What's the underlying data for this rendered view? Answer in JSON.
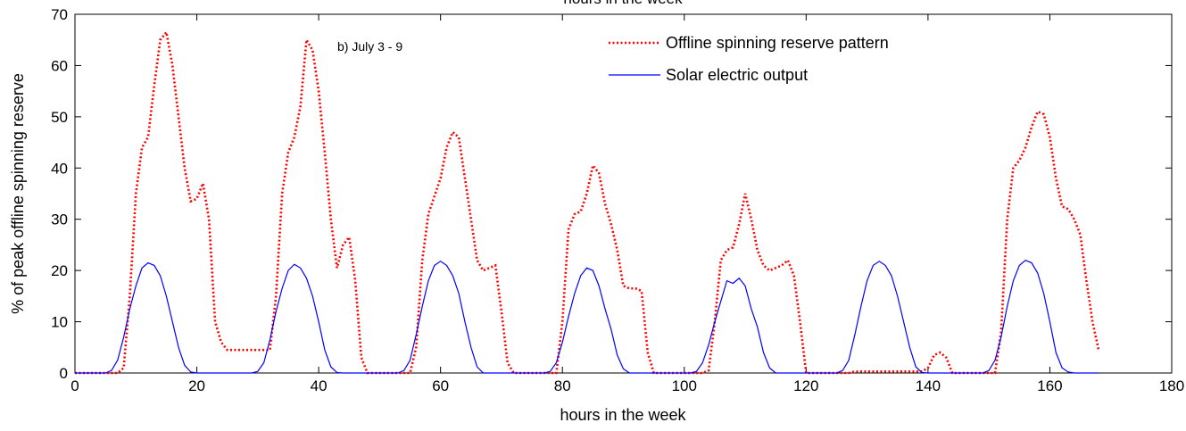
{
  "chart_data": {
    "type": "line",
    "title": "hours in the week",
    "xlabel": "hours in the week",
    "ylabel": "% of peak offline spinning reserve",
    "annotation": "b) July 3 - 9",
    "legend": "upper right",
    "grid": false,
    "xlim": [
      0,
      180
    ],
    "xticks": [
      0,
      20,
      40,
      60,
      80,
      100,
      120,
      140,
      160,
      180
    ],
    "ylim": [
      0,
      70
    ],
    "yticks": [
      0,
      10,
      20,
      30,
      40,
      50,
      60,
      70
    ],
    "x": [
      0,
      1,
      2,
      3,
      4,
      5,
      6,
      7,
      8,
      9,
      10,
      11,
      12,
      13,
      14,
      15,
      16,
      17,
      18,
      19,
      20,
      21,
      22,
      23,
      24,
      25,
      26,
      27,
      28,
      29,
      30,
      31,
      32,
      33,
      34,
      35,
      36,
      37,
      38,
      39,
      40,
      41,
      42,
      43,
      44,
      45,
      46,
      47,
      48,
      49,
      50,
      51,
      52,
      53,
      54,
      55,
      56,
      57,
      58,
      59,
      60,
      61,
      62,
      63,
      64,
      65,
      66,
      67,
      68,
      69,
      70,
      71,
      72,
      73,
      74,
      75,
      76,
      77,
      78,
      79,
      80,
      81,
      82,
      83,
      84,
      85,
      86,
      87,
      88,
      89,
      90,
      91,
      92,
      93,
      94,
      95,
      96,
      97,
      98,
      99,
      100,
      101,
      102,
      103,
      104,
      105,
      106,
      107,
      108,
      109,
      110,
      111,
      112,
      113,
      114,
      115,
      116,
      117,
      118,
      119,
      120,
      121,
      122,
      123,
      124,
      125,
      126,
      127,
      128,
      129,
      130,
      131,
      132,
      133,
      134,
      135,
      136,
      137,
      138,
      139,
      140,
      141,
      142,
      143,
      144,
      145,
      146,
      147,
      148,
      149,
      150,
      151,
      152,
      153,
      154,
      155,
      156,
      157,
      158,
      159,
      160,
      161,
      162,
      163,
      164,
      165,
      166,
      167,
      168
    ],
    "series": [
      {
        "name": "Offline spinning reserve pattern",
        "color": "#ff0000",
        "style": "dotted",
        "values": [
          0,
          0,
          0,
          0,
          0,
          0,
          0,
          0,
          1,
          15,
          35,
          44,
          46,
          56,
          65,
          66.5,
          60,
          50,
          40,
          33.5,
          34,
          37,
          30,
          10,
          6,
          4.5,
          4.5,
          4.5,
          4.5,
          4.5,
          4.5,
          4.5,
          4.5,
          15,
          35,
          43,
          46,
          52,
          65,
          63,
          55,
          43,
          30,
          20.5,
          25,
          26.5,
          18,
          3,
          0,
          0,
          0,
          0,
          0,
          0,
          0,
          0,
          5,
          22,
          31,
          34.5,
          38,
          44,
          47,
          46,
          38,
          30,
          22,
          20,
          20.5,
          21,
          12,
          2,
          0,
          0,
          0,
          0,
          0,
          0,
          0,
          0,
          10,
          28,
          31,
          31.5,
          35,
          40.5,
          39,
          33,
          29,
          24,
          17,
          16.5,
          16.5,
          16,
          4,
          0,
          0,
          0,
          0,
          0,
          0,
          0,
          0,
          0,
          0.5,
          10,
          22,
          24,
          24.5,
          29,
          35,
          30,
          24,
          21,
          20,
          20.5,
          21,
          22,
          19,
          10,
          0,
          0,
          0,
          0,
          0,
          0,
          0,
          0,
          0.3,
          0.3,
          0.3,
          0.3,
          0.3,
          0.3,
          0.3,
          0.3,
          0.3,
          0.3,
          0.3,
          0.3,
          1,
          3.5,
          4,
          3,
          0,
          0,
          0,
          0,
          0,
          0,
          0,
          0,
          8,
          30,
          40,
          41.5,
          44,
          48,
          51,
          50.5,
          46,
          38,
          32.5,
          32,
          30,
          27,
          18,
          10,
          4.5
        ]
      },
      {
        "name": "Solar electric output",
        "color": "#0000ff",
        "style": "solid",
        "values": [
          0,
          0,
          0,
          0,
          0,
          0,
          0.5,
          2.5,
          7,
          12.5,
          17,
          20.5,
          21.5,
          21,
          19,
          15,
          10,
          5,
          1.5,
          0.2,
          0,
          0,
          0,
          0,
          0,
          0,
          0,
          0,
          0,
          0,
          0.3,
          2,
          6.5,
          12,
          16.5,
          20,
          21.2,
          20.5,
          18.5,
          15,
          10,
          4.5,
          1.2,
          0.1,
          0,
          0,
          0,
          0,
          0,
          0,
          0,
          0,
          0,
          0,
          0.5,
          2.5,
          7.5,
          13,
          18,
          21,
          21.8,
          21,
          19,
          15.5,
          10,
          5,
          1.2,
          0,
          0,
          0,
          0,
          0,
          0,
          0,
          0,
          0,
          0,
          0,
          0.3,
          2,
          6,
          11,
          15.5,
          19,
          20.5,
          20,
          17,
          12.5,
          8.5,
          3.5,
          0.8,
          0,
          0,
          0,
          0,
          0,
          0,
          0,
          0,
          0,
          0,
          0,
          0.3,
          2,
          5.5,
          10,
          14,
          18,
          17.5,
          18.5,
          17,
          12.5,
          9,
          4,
          1,
          0,
          0,
          0,
          0,
          0,
          0,
          0,
          0,
          0,
          0,
          0,
          0.5,
          2.5,
          7.5,
          13,
          18,
          21,
          21.8,
          21,
          19,
          15,
          10,
          5,
          1.2,
          0.1,
          0,
          0,
          0,
          0,
          0,
          0,
          0,
          0,
          0,
          0,
          0.5,
          2.5,
          7,
          13,
          18,
          21,
          22,
          21.5,
          19.5,
          15.5,
          10,
          4,
          1,
          0.2,
          0,
          0,
          0,
          0,
          0
        ]
      }
    ]
  }
}
